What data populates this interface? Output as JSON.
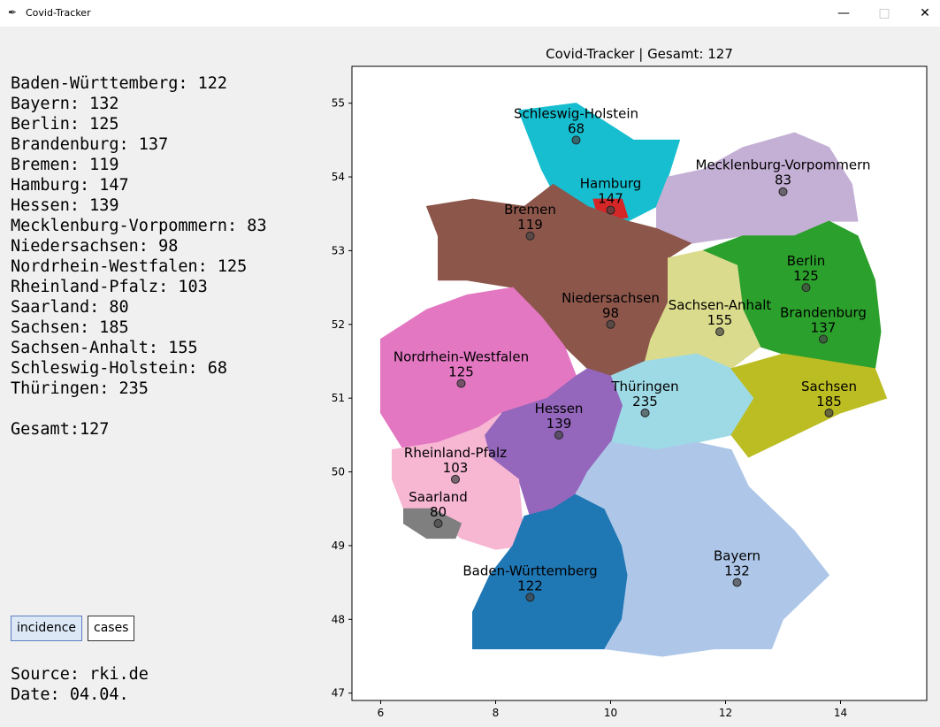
{
  "window": {
    "title": "Covid-Tracker",
    "minimize_icon": "minimize-icon",
    "maximize_icon": "maximize-icon",
    "close_icon": "close-icon"
  },
  "stats": [
    {
      "state": "Baden-Württemberg",
      "value": 122
    },
    {
      "state": "Bayern",
      "value": 132
    },
    {
      "state": "Berlin",
      "value": 125
    },
    {
      "state": "Brandenburg",
      "value": 137
    },
    {
      "state": "Bremen",
      "value": 119
    },
    {
      "state": "Hamburg",
      "value": 147
    },
    {
      "state": "Hessen",
      "value": 139
    },
    {
      "state": "Mecklenburg-Vorpommern",
      "value": 83
    },
    {
      "state": "Niedersachsen",
      "value": 98
    },
    {
      "state": "Nordrhein-Westfalen",
      "value": 125
    },
    {
      "state": "Rheinland-Pfalz",
      "value": 103
    },
    {
      "state": "Saarland",
      "value": 80
    },
    {
      "state": "Sachsen",
      "value": 185
    },
    {
      "state": "Sachsen-Anhalt",
      "value": 155
    },
    {
      "state": "Schleswig-Holstein",
      "value": 68
    },
    {
      "state": "Thüringen",
      "value": 235
    }
  ],
  "total_label": "Gesamt:127",
  "buttons": {
    "incidence": "incidence",
    "cases": "cases"
  },
  "source_label": "Source: rki.de",
  "date_label": "Date: 04.04.",
  "chart_data": {
    "type": "scatter",
    "title": "Covid-Tracker | Gesamt: 127",
    "xlim": [
      5.5,
      15.5
    ],
    "ylim": [
      46.9,
      55.5
    ],
    "xticks": [
      6,
      8,
      10,
      12,
      14
    ],
    "yticks": [
      47,
      48,
      49,
      50,
      51,
      52,
      53,
      54,
      55
    ],
    "points": [
      {
        "name": "Schleswig-Holstein",
        "value": 68,
        "x": 9.4,
        "y": 54.5,
        "color": "#17becf"
      },
      {
        "name": "Hamburg",
        "value": 147,
        "x": 10.0,
        "y": 53.55,
        "color": "#d62728"
      },
      {
        "name": "Mecklenburg-Vorpommern",
        "value": 83,
        "x": 13.0,
        "y": 53.8,
        "color": "#c5b0d5"
      },
      {
        "name": "Bremen",
        "value": 119,
        "x": 8.6,
        "y": 53.2,
        "color": "#98df8a"
      },
      {
        "name": "Niedersachsen",
        "value": 98,
        "x": 10.0,
        "y": 52.0,
        "color": "#8c564b"
      },
      {
        "name": "Berlin",
        "value": 125,
        "x": 13.4,
        "y": 52.5,
        "color": "#ff7f0e"
      },
      {
        "name": "Brandenburg",
        "value": 137,
        "x": 13.7,
        "y": 51.8,
        "color": "#2ca02c"
      },
      {
        "name": "Sachsen-Anhalt",
        "value": 155,
        "x": 11.9,
        "y": 51.9,
        "color": "#dbdb8d"
      },
      {
        "name": "Nordrhein-Westfalen",
        "value": 125,
        "x": 7.4,
        "y": 51.2,
        "color": "#e377c2"
      },
      {
        "name": "Thüringen",
        "value": 235,
        "x": 10.6,
        "y": 50.8,
        "color": "#9edae5"
      },
      {
        "name": "Sachsen",
        "value": 185,
        "x": 13.8,
        "y": 50.8,
        "color": "#bcbd22"
      },
      {
        "name": "Hessen",
        "value": 139,
        "x": 9.1,
        "y": 50.5,
        "color": "#9467bd"
      },
      {
        "name": "Rheinland-Pfalz",
        "value": 103,
        "x": 7.3,
        "y": 49.9,
        "color": "#f7b6d2"
      },
      {
        "name": "Saarland",
        "value": 80,
        "x": 7.0,
        "y": 49.3,
        "color": "#7f7f7f"
      },
      {
        "name": "Baden-Württemberg",
        "value": 122,
        "x": 8.6,
        "y": 48.3,
        "color": "#1f77b4"
      },
      {
        "name": "Bayern",
        "value": 132,
        "x": 12.2,
        "y": 48.5,
        "color": "#aec7e8"
      }
    ]
  }
}
